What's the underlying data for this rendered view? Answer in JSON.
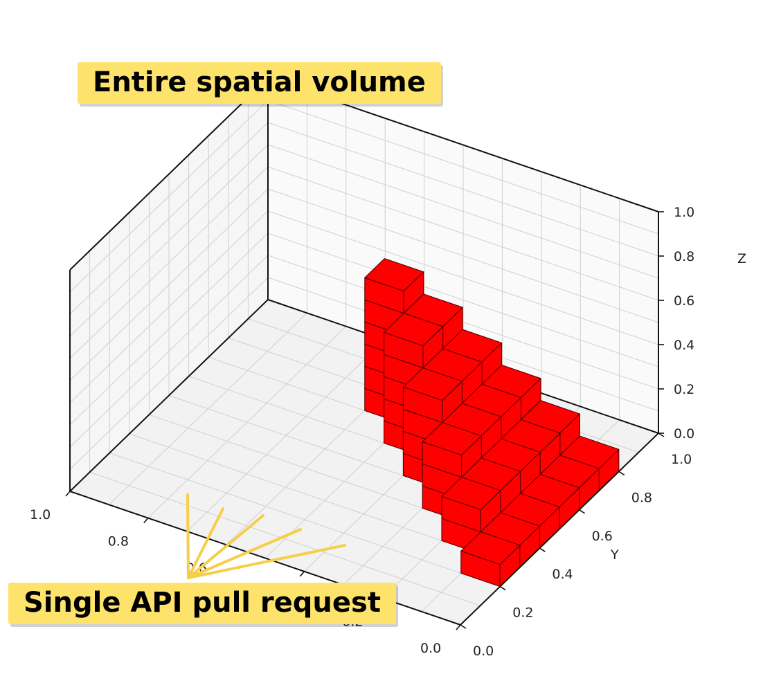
{
  "chart_data": {
    "type": "3d-bar",
    "xlabel": "",
    "ylabel": "Y",
    "zlabel": "Z",
    "xlim": [
      0,
      1
    ],
    "ylim": [
      0,
      1
    ],
    "zlim": [
      0,
      1
    ],
    "x_ticks": [
      "0.0",
      "0.2",
      "0.4",
      "0.6",
      "0.8",
      "1.0"
    ],
    "y_ticks": [
      "0.0",
      "0.2",
      "0.4",
      "0.6",
      "0.8",
      "1.0"
    ],
    "z_ticks": [
      "0.0",
      "0.2",
      "0.4",
      "0.6",
      "0.8",
      "1.0"
    ],
    "grid": true,
    "bar_color": "#ff0000",
    "cell_size": 0.1,
    "voxel_columns": [
      {
        "i": 0,
        "j_start": 2,
        "j_end": 7,
        "height": 1
      },
      {
        "i": 1,
        "j_start": 3,
        "j_end": 7,
        "height": 2
      },
      {
        "i": 2,
        "j_start": 4,
        "j_end": 7,
        "height": 3
      },
      {
        "i": 3,
        "j_start": 5,
        "j_end": 7,
        "height": 4
      },
      {
        "i": 4,
        "j_start": 6,
        "j_end": 7,
        "height": 5
      },
      {
        "i": 5,
        "j_start": 7,
        "j_end": 7,
        "height": 6
      }
    ]
  },
  "annotations": {
    "volume_label": "Entire spatial volume",
    "pull_label": "Single API pull request",
    "accent": "#fde36b",
    "pointer_color": "#f5cf4a"
  }
}
